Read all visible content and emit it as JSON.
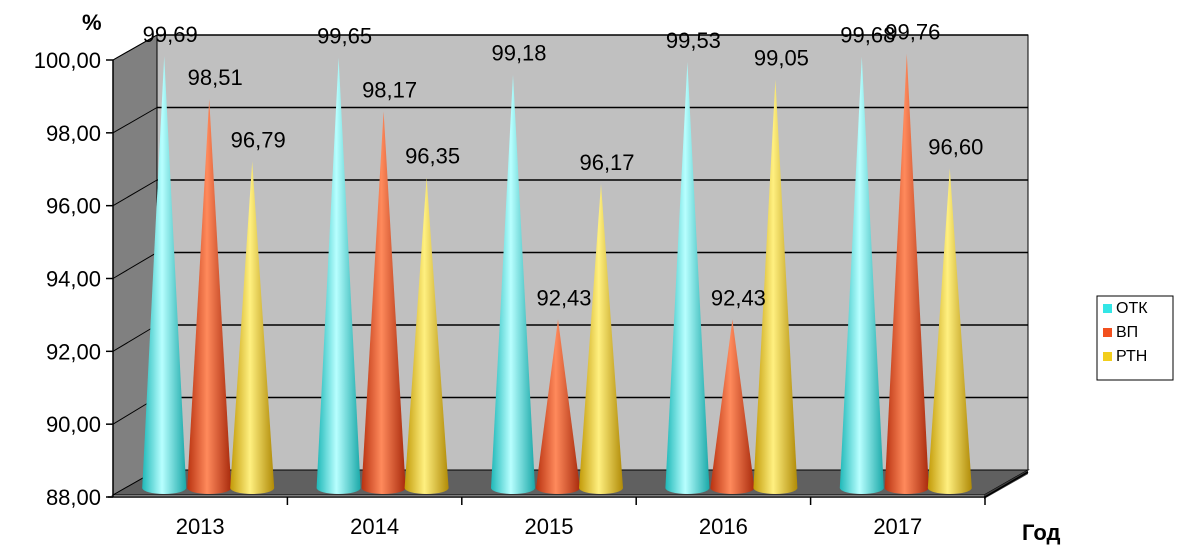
{
  "chart_data": {
    "type": "bar",
    "bar_shape": "cone",
    "categories": [
      "2013",
      "2014",
      "2015",
      "2016",
      "2017"
    ],
    "series": [
      {
        "name": "ОТК",
        "color": "#33E6E6",
        "values": [
          99.69,
          99.65,
          99.18,
          99.53,
          99.68
        ]
      },
      {
        "name": "ВП",
        "color": "#F2501E",
        "values": [
          98.51,
          98.17,
          92.43,
          92.43,
          99.76
        ]
      },
      {
        "name": "РТН",
        "color": "#F2CE1C",
        "values": [
          96.79,
          96.35,
          96.17,
          99.05,
          96.6
        ]
      }
    ],
    "data_labels": [
      [
        "99,69",
        "98,51",
        "96,79"
      ],
      [
        "99,65",
        "98,17",
        "96,35"
      ],
      [
        "99,18",
        "92,43",
        "96,17"
      ],
      [
        "99,53",
        "92,43",
        "99,05"
      ],
      [
        "99,68",
        "99,76",
        "96,60"
      ]
    ],
    "ylabel": "%",
    "xlabel": "Год",
    "ylim": [
      88,
      100
    ],
    "yticks": [
      "88,00",
      "90,00",
      "92,00",
      "94,00",
      "96,00",
      "98,00",
      "100,00"
    ],
    "grid": true,
    "legend_position": "right",
    "wall_color": "#C0C0C0",
    "floor_color": "#606060"
  }
}
